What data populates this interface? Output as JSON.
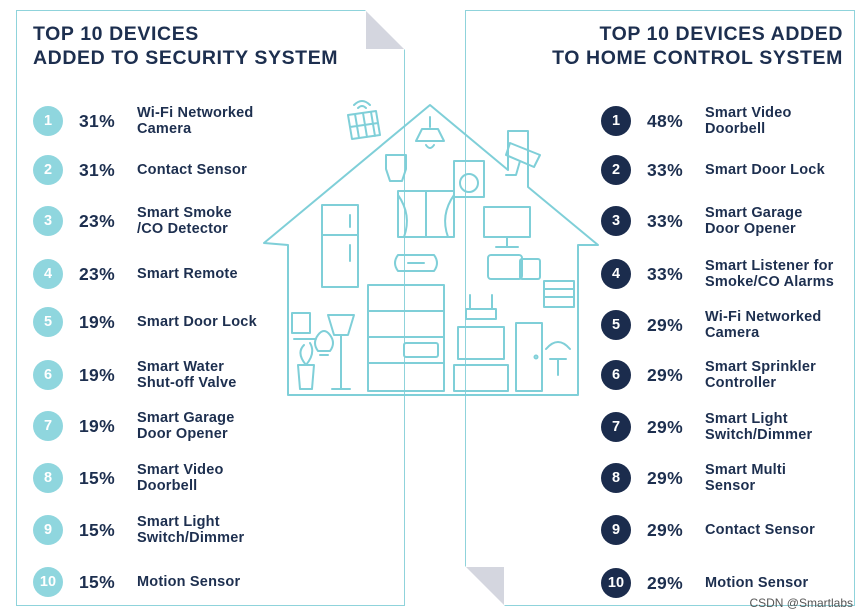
{
  "chart_data": [
    {
      "type": "table",
      "title": "TOP 10 DEVICES ADDED TO SECURITY SYSTEM",
      "title_lines": [
        "TOP 10 DEVICES",
        "ADDED TO SECURITY SYSTEM"
      ],
      "columns": [
        "rank",
        "percent",
        "device"
      ],
      "rows": [
        {
          "rank": "1",
          "value": 31,
          "label": "31%",
          "device": "Wi-Fi Networked\nCamera"
        },
        {
          "rank": "2",
          "value": 31,
          "label": "31%",
          "device": "Contact Sensor"
        },
        {
          "rank": "3",
          "value": 23,
          "label": "23%",
          "device": "Smart Smoke\n/CO Detector"
        },
        {
          "rank": "4",
          "value": 23,
          "label": "23%",
          "device": "Smart Remote"
        },
        {
          "rank": "5",
          "value": 19,
          "label": "19%",
          "device": "Smart Door Lock"
        },
        {
          "rank": "6",
          "value": 19,
          "label": "19%",
          "device": "Smart Water\nShut-off Valve"
        },
        {
          "rank": "7",
          "value": 19,
          "label": "19%",
          "device": "Smart Garage\nDoor Opener"
        },
        {
          "rank": "8",
          "value": 15,
          "label": "15%",
          "device": "Smart Video\nDoorbell"
        },
        {
          "rank": "9",
          "value": 15,
          "label": "15%",
          "device": "Smart Light\nSwitch/Dimmer"
        },
        {
          "rank": "10",
          "value": 15,
          "label": "15%",
          "device": "Motion Sensor"
        }
      ],
      "badge_color": "#8fd6de"
    },
    {
      "type": "table",
      "title": "TOP 10 DEVICES ADDED TO HOME CONTROL SYSTEM",
      "title_lines": [
        "TOP 10 DEVICES ADDED",
        "TO HOME CONTROL SYSTEM"
      ],
      "columns": [
        "rank",
        "percent",
        "device"
      ],
      "rows": [
        {
          "rank": "1",
          "value": 48,
          "label": "48%",
          "device": "Smart Video\nDoorbell"
        },
        {
          "rank": "2",
          "value": 33,
          "label": "33%",
          "device": "Smart Door Lock"
        },
        {
          "rank": "3",
          "value": 33,
          "label": "33%",
          "device": "Smart Garage\nDoor Opener"
        },
        {
          "rank": "4",
          "value": 33,
          "label": "33%",
          "device": "Smart Listener for\nSmoke/CO Alarms"
        },
        {
          "rank": "5",
          "value": 29,
          "label": "29%",
          "device": "Wi-Fi Networked\nCamera"
        },
        {
          "rank": "6",
          "value": 29,
          "label": "29%",
          "device": "Smart Sprinkler\nController"
        },
        {
          "rank": "7",
          "value": 29,
          "label": "29%",
          "device": "Smart Light\nSwitch/Dimmer"
        },
        {
          "rank": "8",
          "value": 29,
          "label": "29%",
          "device": "Smart Multi\nSensor"
        },
        {
          "rank": "9",
          "value": 29,
          "label": "29%",
          "device": "Contact Sensor"
        },
        {
          "rank": "10",
          "value": 29,
          "label": "29%",
          "device": "Motion Sensor"
        }
      ],
      "badge_color": "#1b2c4d"
    }
  ],
  "colors": {
    "text": "#1d2f4f",
    "accent_light": "#8fd6de",
    "accent_dark": "#1b2c4d",
    "house": "#7fcfd8"
  },
  "watermark": "CSDN @Smartlabs"
}
